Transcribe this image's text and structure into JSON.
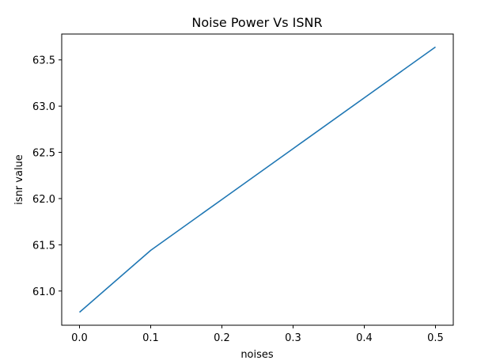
{
  "chart_data": {
    "type": "line",
    "title": "Noise Power Vs ISNR",
    "xlabel": "noises",
    "ylabel": "isnr value",
    "xlim": [
      -0.025,
      0.525
    ],
    "ylim": [
      60.63,
      63.78
    ],
    "x_ticks": [
      0.0,
      0.1,
      0.2,
      0.3,
      0.4,
      0.5
    ],
    "x_tick_labels": [
      "0.0",
      "0.1",
      "0.2",
      "0.3",
      "0.4",
      "0.5"
    ],
    "y_ticks": [
      61.0,
      61.5,
      62.0,
      62.5,
      63.0,
      63.5
    ],
    "y_tick_labels": [
      "61.0",
      "61.5",
      "62.0",
      "62.5",
      "63.0",
      "63.5"
    ],
    "grid": false,
    "series": [
      {
        "color": "#1f77b4",
        "x": [
          0.0,
          0.1,
          0.2,
          0.3,
          0.4,
          0.5
        ],
        "y": [
          60.77,
          61.44,
          61.99,
          62.54,
          63.09,
          63.64
        ]
      }
    ]
  }
}
